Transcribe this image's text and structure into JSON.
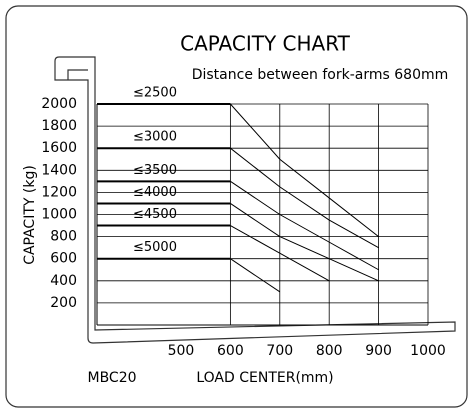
{
  "chart_data": {
    "type": "line",
    "title": "CAPACITY CHART",
    "subtitle": "Distance between fork-arms 680mm",
    "xlabel": "LOAD CENTER(mm)",
    "ylabel": "CAPACITY (kg)",
    "model": "MBC20",
    "x": [
      600,
      700,
      800,
      900
    ],
    "series": [
      {
        "name": "≤2500",
        "color": "#000000",
        "values": [
          2000,
          1500,
          1150,
          800
        ]
      },
      {
        "name": "≤3000",
        "color": "#000000",
        "values": [
          1600,
          1250,
          950,
          700
        ]
      },
      {
        "name": "≤3500",
        "color": "#000000",
        "values": [
          1300,
          1000,
          750,
          500
        ]
      },
      {
        "name": "≤4000",
        "color": "#000000",
        "values": [
          1100,
          800,
          600,
          400
        ]
      },
      {
        "name": "≤4500",
        "color": "#000000",
        "values": [
          900,
          650,
          400,
          null
        ]
      },
      {
        "name": "≤5000",
        "color": "#000000",
        "values": [
          600,
          300,
          null,
          null
        ]
      }
    ],
    "xlim": [
      330,
      1000
    ],
    "ylim": [
      0,
      2000
    ],
    "xticks": [
      500,
      600,
      700,
      800,
      900,
      1000
    ],
    "yticks": [
      200,
      400,
      600,
      800,
      1000,
      1200,
      1400,
      1600,
      1800,
      2000
    ],
    "grid": true
  }
}
